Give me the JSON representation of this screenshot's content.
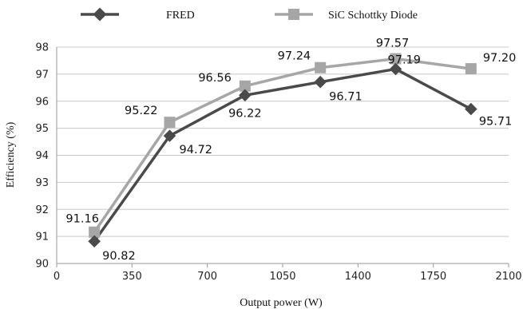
{
  "chart_data": {
    "type": "line",
    "xlabel": "Output power (W)",
    "ylabel": "Efficiency (%)",
    "xlim": [
      0,
      2100
    ],
    "ylim": [
      90,
      98
    ],
    "x_ticks": [
      0,
      350,
      700,
      1050,
      1400,
      1750,
      2100
    ],
    "y_ticks": [
      90,
      91,
      92,
      93,
      94,
      95,
      96,
      97,
      98
    ],
    "x_tick_labels": [
      "0",
      "350",
      "700",
      "1050",
      "1400",
      "1750",
      "2100"
    ],
    "y_tick_labels": [
      "90",
      "91",
      "92",
      "93",
      "94",
      "95",
      "96",
      "97",
      "98"
    ],
    "grid": "horizontal",
    "legend_position": "top",
    "series": [
      {
        "name": "FRED",
        "marker": "diamond",
        "color": "#4a4a4a",
        "x": [
          175,
          525,
          875,
          1225,
          1575,
          1925
        ],
        "values": [
          90.82,
          94.72,
          96.22,
          96.71,
          97.19,
          95.71
        ],
        "labels": [
          "90.82",
          "94.72",
          "96.22",
          "96.71",
          "97.19",
          "95.71"
        ]
      },
      {
        "name": "SiC Schottky Diode",
        "marker": "square",
        "color": "#a6a6a6",
        "x": [
          175,
          525,
          875,
          1225,
          1575,
          1925
        ],
        "values": [
          91.16,
          95.22,
          96.56,
          97.24,
          97.57,
          97.2
        ],
        "labels": [
          "91.16",
          "95.22",
          "96.56",
          "97.24",
          "97.57",
          "97.20"
        ]
      }
    ]
  }
}
